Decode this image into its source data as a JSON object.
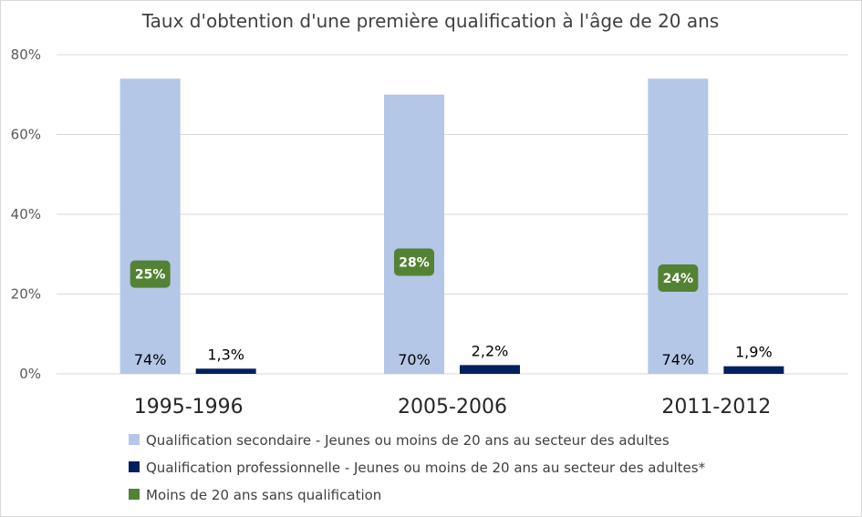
{
  "chart_data": {
    "type": "bar",
    "title": "Taux d'obtention d'une première qualification à l'âge de 20 ans",
    "categories": [
      "1995-1996",
      "2005-2006",
      "2011-2012"
    ],
    "y_ticks": [
      "0%",
      "20%",
      "40%",
      "60%",
      "80%"
    ],
    "ylim": [
      0,
      80
    ],
    "grid": true,
    "legend_position": "bottom",
    "series": [
      {
        "name": "Qualification secondaire - Jeunes ou moins de 20 ans au secteur des adultes",
        "values": [
          74,
          70,
          74
        ],
        "labels": [
          "74%",
          "70%",
          "74%"
        ],
        "color": "#b4c7e7"
      },
      {
        "name": "Qualification professionnelle - Jeunes ou moins de 20 ans au secteur des adultes*",
        "values": [
          1.3,
          2.2,
          1.9
        ],
        "labels": [
          "1,3%",
          "2,2%",
          "1,9%"
        ],
        "color": "#002060"
      },
      {
        "name": "Moins de 20 ans sans qualification",
        "values": [
          25,
          28,
          24
        ],
        "labels": [
          "25%",
          "28%",
          "24%"
        ],
        "color": "#548235"
      }
    ]
  }
}
